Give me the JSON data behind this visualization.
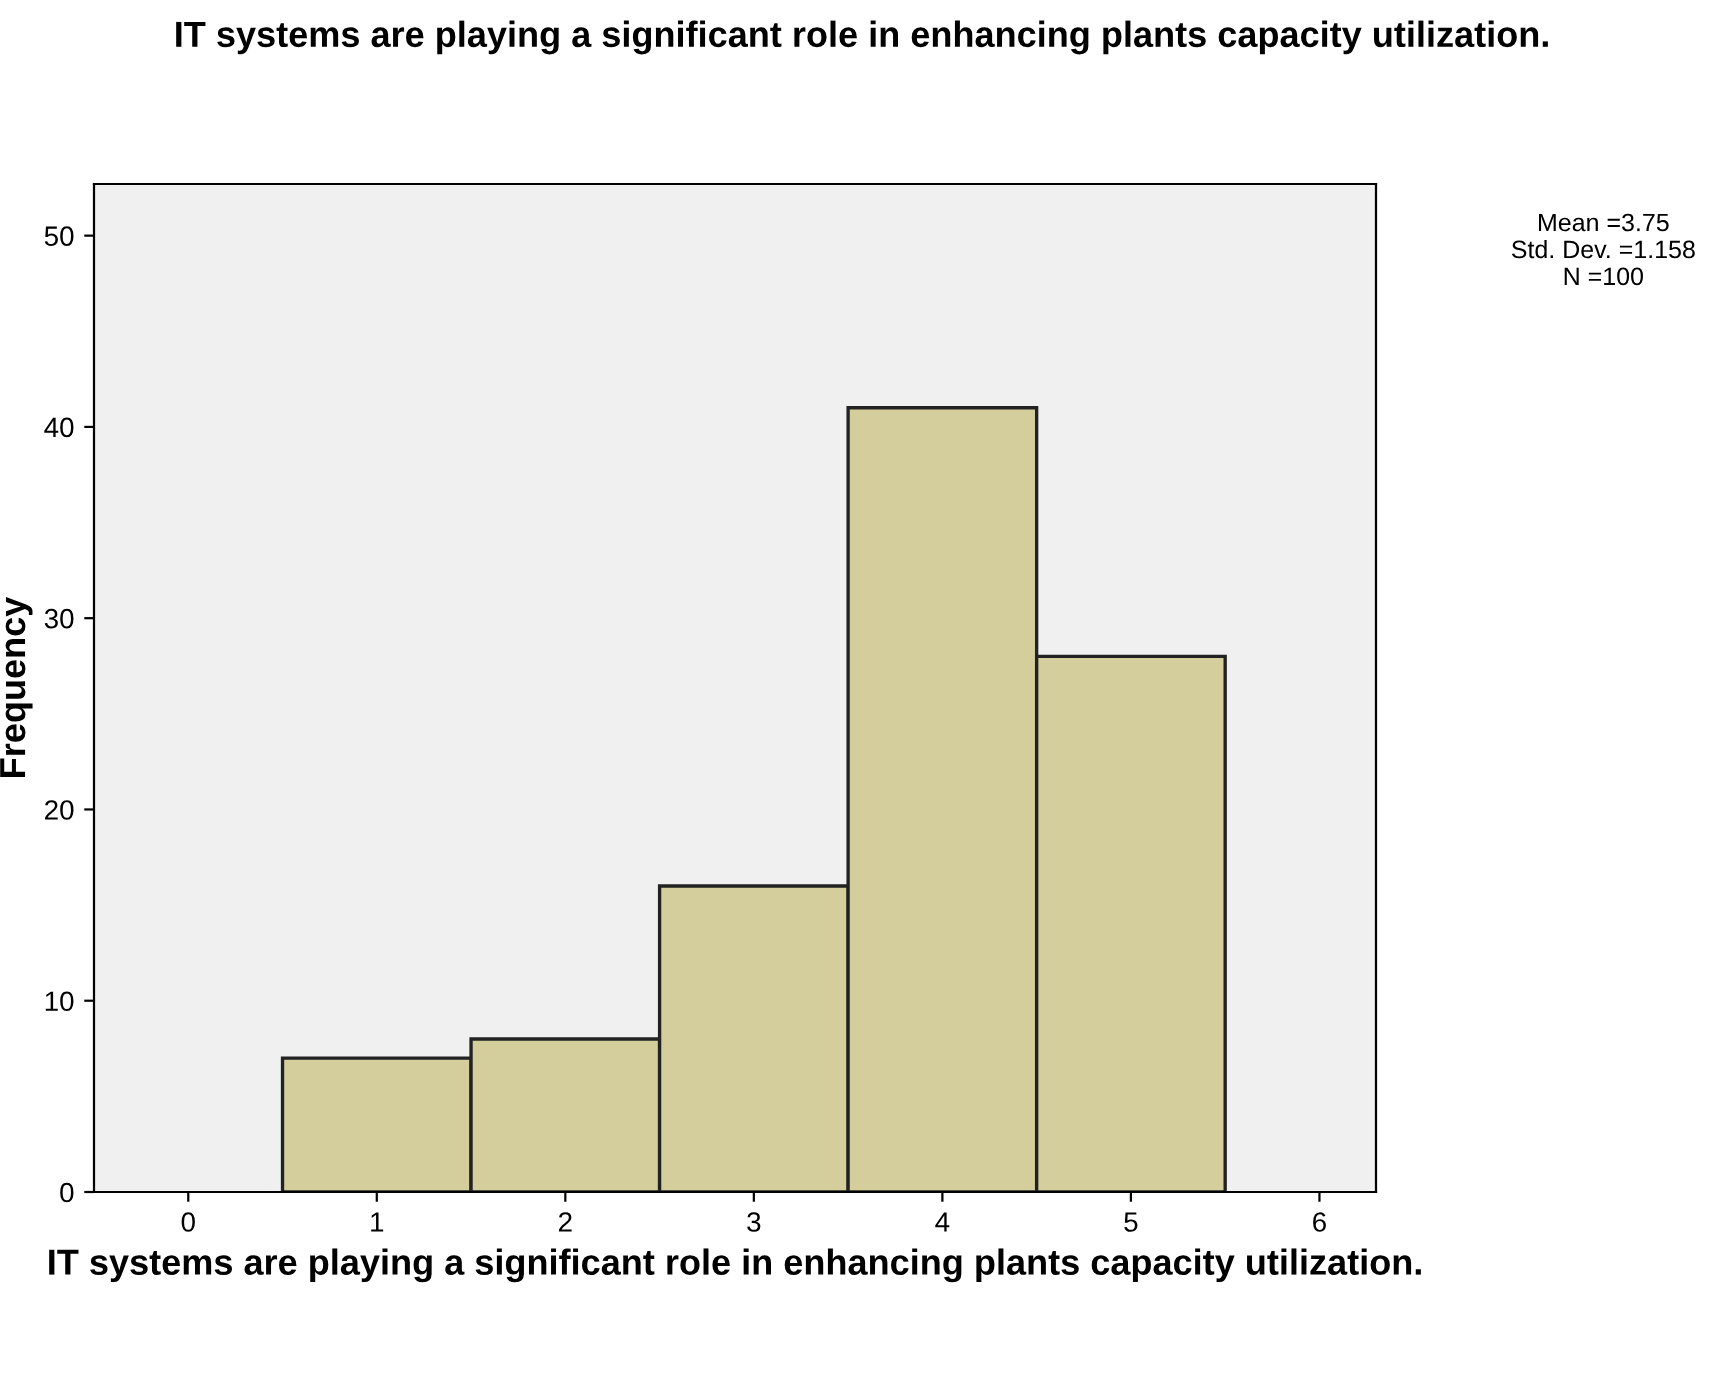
{
  "chart_data": {
    "type": "histogram",
    "title": "IT systems are playing a significant role in enhancing plants capacity utilization.",
    "xlabel": "IT systems are playing a significant role in enhancing plants capacity utilization.",
    "ylabel": "Frequency",
    "bins": [
      0.5,
      1.5,
      2.5,
      3.5,
      4.5,
      5.5
    ],
    "values": [
      7,
      8,
      16,
      41,
      28
    ],
    "color": "#d3ce9c",
    "xlim": [
      -0.5,
      6.3
    ],
    "ylim": [
      0,
      52.7
    ],
    "xticks": [
      0,
      1,
      2,
      3,
      4,
      5,
      6
    ],
    "yticks": [
      0,
      10,
      20,
      30,
      40,
      50
    ],
    "annotations": [
      "Mean =3.75\nStd. Dev. =1.158\nN =100"
    ]
  }
}
